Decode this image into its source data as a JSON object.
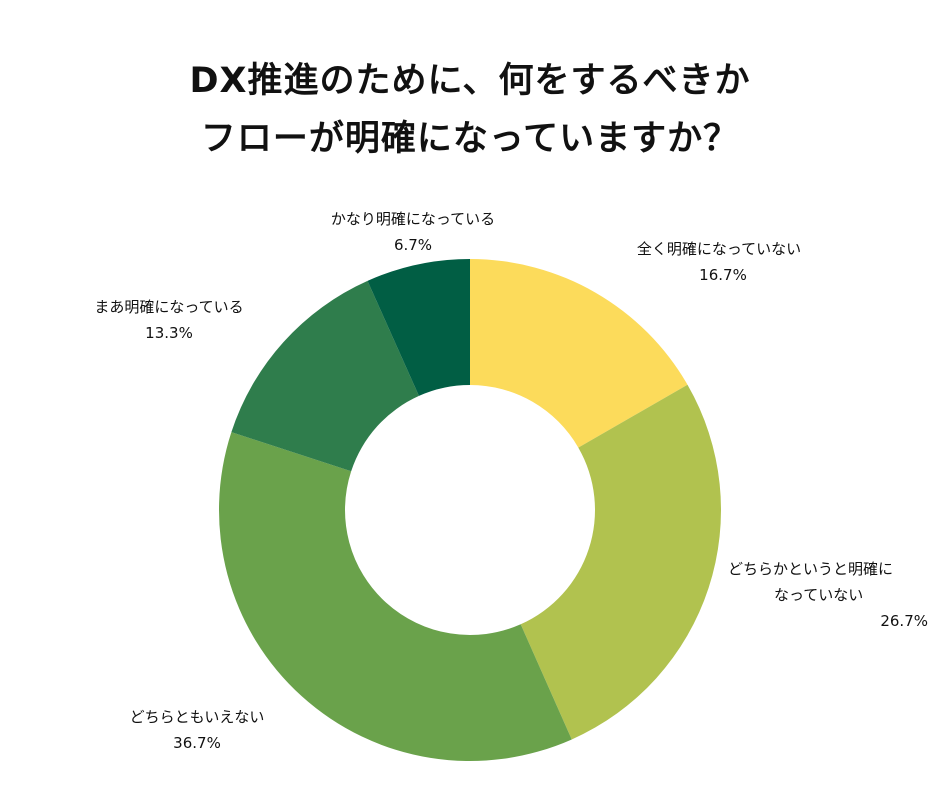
{
  "title": {
    "line1": "DX推進のために、何をするべきか",
    "line2": "フローが明確になっていますか？"
  },
  "chart_data": {
    "type": "pie",
    "donut": true,
    "title": "DX推進のために、何をするべきかフローが明確になっていますか？",
    "slices": [
      {
        "label": "全く明確になっていない",
        "value": 16.7,
        "display": "16.7%",
        "color": "#fcdb5b"
      },
      {
        "label": "どちらかというと明確になっていない",
        "label_line1": "どちらかというと明確に",
        "label_line2": "なっていない",
        "value": 26.7,
        "display": "26.7%",
        "color": "#b1c24f"
      },
      {
        "label": "どちらともいえない",
        "value": 36.7,
        "display": "36.7%",
        "color": "#6aa24b"
      },
      {
        "label": "まあ明確になっている",
        "value": 13.3,
        "display": "13.3%",
        "color": "#2f7d4c"
      },
      {
        "label": "かなり明確になっている",
        "value": 6.7,
        "display": "6.7%",
        "color": "#015e44"
      }
    ]
  }
}
